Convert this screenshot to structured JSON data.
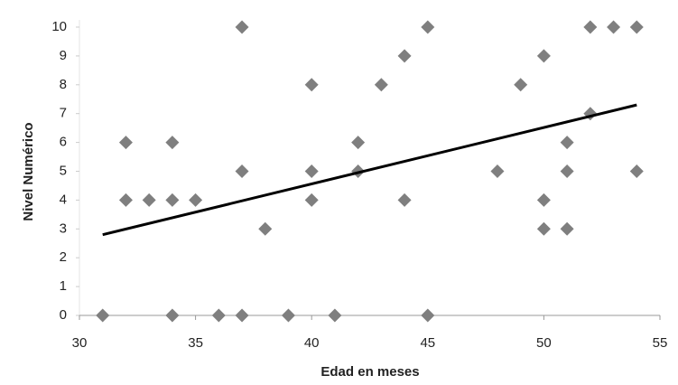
{
  "chart_data": {
    "type": "scatter",
    "x_label": "Edad en meses",
    "y_label": "Nivel Numérico",
    "x": [
      31,
      32,
      32,
      33,
      34,
      34,
      34,
      35,
      36,
      37,
      37,
      37,
      38,
      39,
      40,
      40,
      40,
      41,
      42,
      42,
      43,
      44,
      44,
      45,
      45,
      48,
      49,
      50,
      50,
      50,
      51,
      51,
      51,
      52,
      52,
      53,
      54,
      54
    ],
    "values": [
      0,
      6,
      4,
      4,
      6,
      4,
      0,
      4,
      0,
      10,
      5,
      0,
      3,
      0,
      8,
      5,
      4,
      0,
      6,
      5,
      8,
      9,
      4,
      10,
      0,
      5,
      8,
      9,
      4,
      3,
      6,
      5,
      3,
      10,
      7,
      10,
      10,
      5
    ],
    "color": "#7f7f7f",
    "trendline": {
      "x": [
        31,
        54
      ],
      "y": [
        2.8,
        7.3
      ],
      "color": "#000000"
    },
    "xlim": [
      30,
      55
    ],
    "xticks": [
      30,
      35,
      40,
      45,
      50,
      55
    ],
    "ylim": [
      0,
      10
    ],
    "yticks": [
      0,
      1,
      2,
      3,
      4,
      5,
      6,
      7,
      8,
      9,
      10
    ]
  }
}
